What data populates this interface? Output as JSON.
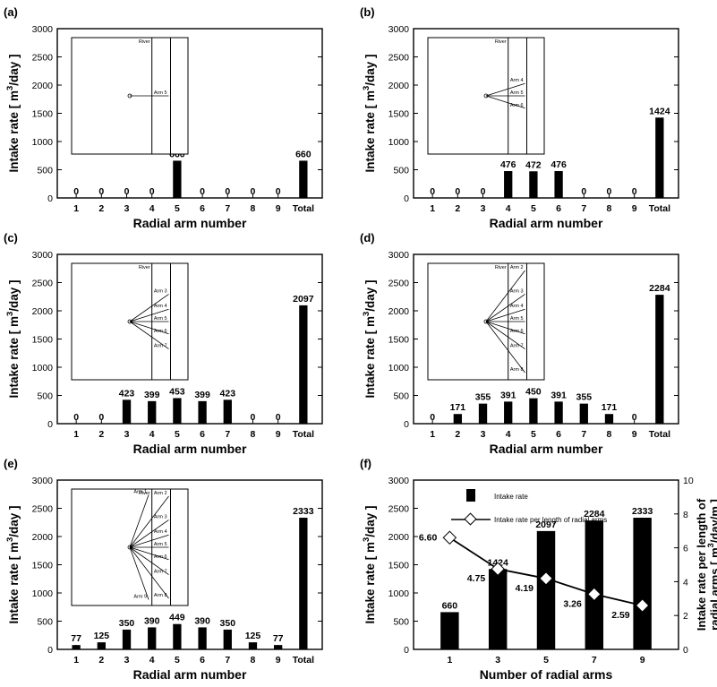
{
  "chart_data": [
    {
      "panel": "(a)",
      "type": "bar",
      "categories": [
        "1",
        "2",
        "3",
        "4",
        "5",
        "6",
        "7",
        "8",
        "9",
        "Total"
      ],
      "values": [
        0,
        0,
        0,
        0,
        660,
        0,
        0,
        0,
        0,
        660
      ],
      "xlabel": "Radial arm number",
      "ylabel": "Intake rate [ m3/day ]",
      "ylim": [
        0,
        3000
      ],
      "yticks": [
        0,
        500,
        1000,
        1500,
        2000,
        2500,
        3000
      ],
      "inset": {
        "river_label": "River",
        "arms": [
          "Arm 5"
        ]
      }
    },
    {
      "panel": "(b)",
      "type": "bar",
      "categories": [
        "1",
        "2",
        "3",
        "4",
        "5",
        "6",
        "7",
        "8",
        "9",
        "Total"
      ],
      "values": [
        0,
        0,
        0,
        476,
        472,
        476,
        0,
        0,
        0,
        1424
      ],
      "xlabel": "Radial arm number",
      "ylabel": "Intake rate [ m3/day ]",
      "ylim": [
        0,
        3000
      ],
      "yticks": [
        0,
        500,
        1000,
        1500,
        2000,
        2500,
        3000
      ],
      "inset": {
        "river_label": "River",
        "arms": [
          "Arm 4",
          "Arm 5",
          "Arm 6"
        ]
      }
    },
    {
      "panel": "(c)",
      "type": "bar",
      "categories": [
        "1",
        "2",
        "3",
        "4",
        "5",
        "6",
        "7",
        "8",
        "9",
        "Total"
      ],
      "values": [
        0,
        0,
        423,
        399,
        453,
        399,
        423,
        0,
        0,
        2097
      ],
      "xlabel": "Radial arm number",
      "ylabel": "Intake rate [ m3/day ]",
      "ylim": [
        0,
        3000
      ],
      "yticks": [
        0,
        500,
        1000,
        1500,
        2000,
        2500,
        3000
      ],
      "inset": {
        "river_label": "River",
        "arms": [
          "Arm 3",
          "Arm 4",
          "Arm 5",
          "Arm 6",
          "Arm 7"
        ]
      }
    },
    {
      "panel": "(d)",
      "type": "bar",
      "categories": [
        "1",
        "2",
        "3",
        "4",
        "5",
        "6",
        "7",
        "8",
        "9",
        "Total"
      ],
      "values": [
        0,
        171,
        355,
        391,
        450,
        391,
        355,
        171,
        0,
        2284
      ],
      "xlabel": "Radial arm number",
      "ylabel": "Intake rate [ m3/day ]",
      "ylim": [
        0,
        3000
      ],
      "yticks": [
        0,
        500,
        1000,
        1500,
        2000,
        2500,
        3000
      ],
      "inset": {
        "river_label": "River",
        "arms": [
          "Arm 2",
          "Arm 3",
          "Arm 4",
          "Arm 5",
          "Arm 6",
          "Arm 7",
          "Arm 8"
        ]
      }
    },
    {
      "panel": "(e)",
      "type": "bar",
      "categories": [
        "1",
        "2",
        "3",
        "4",
        "5",
        "6",
        "7",
        "8",
        "9",
        "Total"
      ],
      "values": [
        77,
        125,
        350,
        390,
        449,
        390,
        350,
        125,
        77,
        2333
      ],
      "xlabel": "Radial arm number",
      "ylabel": "Intake rate [ m3/day ]",
      "ylim": [
        0,
        3000
      ],
      "yticks": [
        0,
        500,
        1000,
        1500,
        2000,
        2500,
        3000
      ],
      "inset": {
        "river_label": "River",
        "arms": [
          "Arm 1",
          "Arm 2",
          "Arm 3",
          "Arm 4",
          "Arm 5",
          "Arm 6",
          "Arm 7",
          "Arm 8",
          "Arm 9"
        ]
      }
    },
    {
      "panel": "(f)",
      "type": "bar",
      "categories": [
        "1",
        "3",
        "5",
        "7",
        "9"
      ],
      "xlabel": "Number of radial arms",
      "ylabel": "Intake rate [ m3/day ]",
      "y2label_line1": "Intake rate per length of",
      "y2label_line2": "radial arms [ m3/day/m ]",
      "ylim": [
        0,
        3000
      ],
      "yticks": [
        0,
        500,
        1000,
        1500,
        2000,
        2500,
        3000
      ],
      "y2lim": [
        0,
        10
      ],
      "y2ticks": [
        0,
        2,
        4,
        6,
        8,
        10
      ],
      "legend_position": "top-left",
      "series": [
        {
          "name": "Intake rate",
          "type": "bar",
          "values": [
            660,
            1424,
            2097,
            2284,
            2333
          ]
        },
        {
          "name": "Intake rate per length of radial arms",
          "type": "line",
          "axis": "right",
          "values": [
            6.6,
            4.75,
            4.19,
            3.26,
            2.59
          ],
          "labels": [
            "6.60",
            "4.75",
            "4.19",
            "3.26",
            "2.59"
          ]
        }
      ]
    }
  ]
}
